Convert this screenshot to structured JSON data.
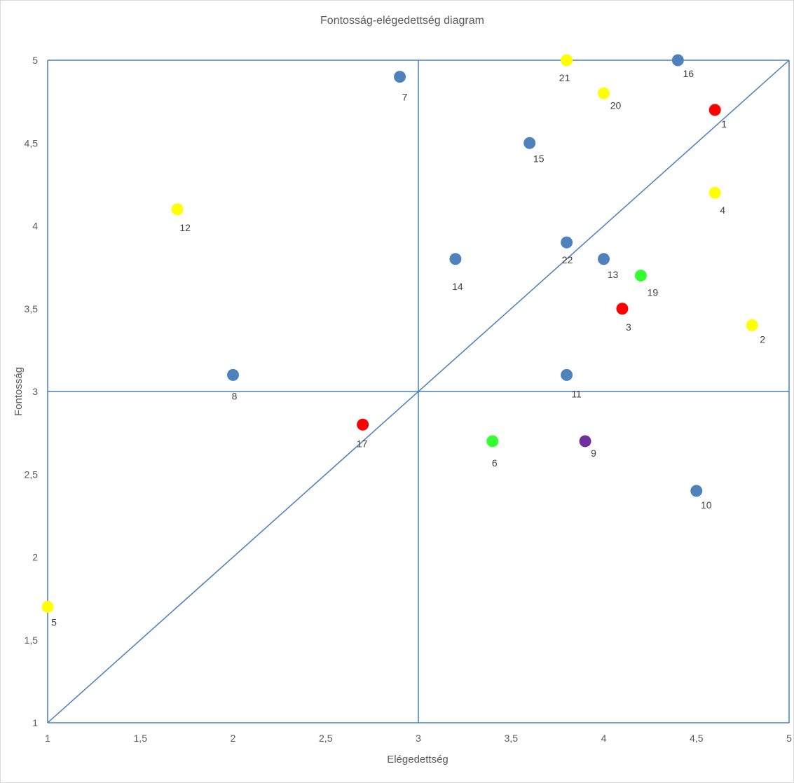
{
  "chart_data": {
    "type": "scatter",
    "title": "Fontosság-elégedettség  diagram",
    "xlabel": "Elégedettség",
    "ylabel": "Fontosság",
    "xlim": [
      1,
      5
    ],
    "ylim": [
      1,
      5
    ],
    "x_ticks": [
      "1",
      "1,5",
      "2",
      "2,5",
      "3",
      "3,5",
      "4",
      "4,5",
      "5"
    ],
    "y_ticks": [
      "1",
      "1,5",
      "2",
      "2,5",
      "3",
      "3,5",
      "4",
      "4,5",
      "5"
    ],
    "grid": false,
    "reference_lines": [
      {
        "kind": "vertical",
        "x": 3
      },
      {
        "kind": "horizontal",
        "y": 3
      },
      {
        "kind": "diagonal",
        "from": [
          1,
          1
        ],
        "to": [
          5,
          5
        ]
      }
    ],
    "line_color": "#4A7EBB",
    "colors": {
      "blue": "#4F81BD",
      "yellow": "#FFFF00",
      "red": "#FF0000",
      "green": "#33FF33",
      "purple": "#7030A0"
    },
    "points": [
      {
        "label": "1",
        "x": 4.6,
        "y": 4.7,
        "color": "red"
      },
      {
        "label": "2",
        "x": 4.8,
        "y": 3.4,
        "color": "yellow"
      },
      {
        "label": "3",
        "x": 4.1,
        "y": 3.5,
        "color": "red"
      },
      {
        "label": "4",
        "x": 4.6,
        "y": 4.2,
        "color": "yellow"
      },
      {
        "label": "5",
        "x": 1.0,
        "y": 1.7,
        "color": "yellow"
      },
      {
        "label": "6",
        "x": 3.4,
        "y": 2.7,
        "color": "green"
      },
      {
        "label": "7",
        "x": 2.9,
        "y": 4.9,
        "color": "blue"
      },
      {
        "label": "8",
        "x": 2.0,
        "y": 3.1,
        "color": "blue"
      },
      {
        "label": "9",
        "x": 3.9,
        "y": 2.7,
        "color": "purple"
      },
      {
        "label": "10",
        "x": 4.5,
        "y": 2.4,
        "color": "blue"
      },
      {
        "label": "11",
        "x": 3.8,
        "y": 3.1,
        "color": "blue"
      },
      {
        "label": "12",
        "x": 1.7,
        "y": 4.1,
        "color": "yellow"
      },
      {
        "label": "13",
        "x": 4.0,
        "y": 3.8,
        "color": "blue"
      },
      {
        "label": "14",
        "x": 3.2,
        "y": 3.8,
        "color": "blue"
      },
      {
        "label": "15",
        "x": 3.6,
        "y": 4.5,
        "color": "blue"
      },
      {
        "label": "16",
        "x": 4.4,
        "y": 5.0,
        "color": "blue"
      },
      {
        "label": "17",
        "x": 2.7,
        "y": 2.8,
        "color": "red"
      },
      {
        "label": "19",
        "x": 4.2,
        "y": 3.7,
        "color": "green"
      },
      {
        "label": "20",
        "x": 4.0,
        "y": 4.8,
        "color": "yellow"
      },
      {
        "label": "21",
        "x": 3.8,
        "y": 5.0,
        "color": "yellow"
      },
      {
        "label": "22",
        "x": 3.8,
        "y": 3.9,
        "color": "blue"
      }
    ]
  }
}
